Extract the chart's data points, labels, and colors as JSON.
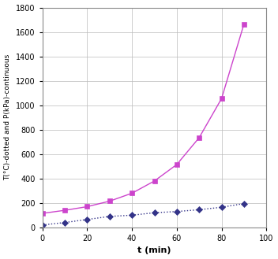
{
  "title": "",
  "xlabel": "t (min)",
  "ylabel": "T(°C)-dotted and P(kPa)-continuous",
  "xlim": [
    0,
    100
  ],
  "ylim": [
    0,
    1800
  ],
  "xticks": [
    0,
    20,
    40,
    60,
    80,
    100
  ],
  "yticks": [
    0,
    200,
    400,
    600,
    800,
    1000,
    1200,
    1400,
    1600,
    1800
  ],
  "line1_x": [
    0,
    10,
    20,
    30,
    40,
    50,
    60,
    70,
    80,
    90
  ],
  "line1_y": [
    115,
    140,
    170,
    215,
    280,
    380,
    515,
    735,
    1055,
    1665
  ],
  "line1_color": "#cc44cc",
  "line1_style": "-",
  "line1_marker": "s",
  "line2_x": [
    0,
    10,
    20,
    30,
    40,
    50,
    60,
    70,
    80,
    90
  ],
  "line2_y": [
    20,
    40,
    65,
    90,
    100,
    120,
    130,
    145,
    165,
    195
  ],
  "line2_color": "#333388",
  "line2_style": ":",
  "line2_marker": "D",
  "background_color": "#ffffff",
  "grid_color": "#bbbbbb",
  "xlabel_fontsize": 8,
  "ylabel_fontsize": 6.5,
  "tick_fontsize": 7
}
